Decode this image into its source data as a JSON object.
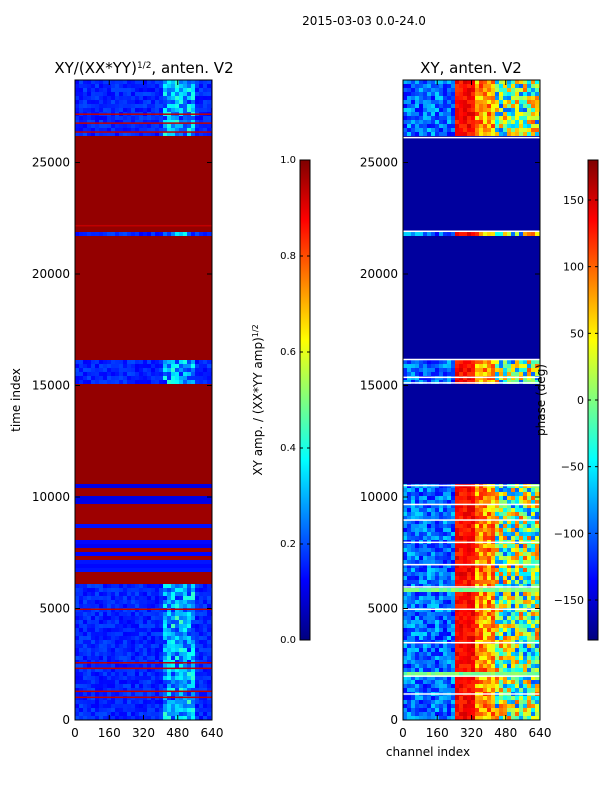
{
  "figure_title": "2015-03-03 0.0-24.0",
  "chart_data": [
    {
      "type": "heatmap",
      "title": "XY/(XX*YY)^1/2, anten. V2",
      "title_main": "XY/(XX*YY)",
      "title_sup": "1/2",
      "title_tail": ", anten. V2",
      "xlabel": "",
      "ylabel": "time index",
      "xlim": [
        0,
        640
      ],
      "ylim": [
        0,
        28700
      ],
      "xticks": [
        0,
        160,
        320,
        480,
        640
      ],
      "yticks": [
        0,
        5000,
        10000,
        15000,
        20000,
        25000
      ],
      "colorbar": {
        "label": "XY amp. / (XX*YY amp)^1/2",
        "label_main": "XY amp. / (XX*YY amp)",
        "label_sup": "1/2",
        "range": [
          0.0,
          1.0
        ],
        "ticks": [
          "0.0",
          "0.2",
          "0.4",
          "0.6",
          "0.8",
          "1.0"
        ],
        "colormap": "jet"
      },
      "saturated_bands": [
        {
          "from": 10550,
          "to": 15150,
          "value": 1.0
        },
        {
          "from": 16200,
          "to": 21750,
          "value": 1.0
        },
        {
          "from": 21950,
          "to": 26150,
          "value": 1.0
        },
        {
          "from": 6100,
          "to": 10550,
          "value": 0.95
        }
      ],
      "background_value": 0.12
    },
    {
      "type": "heatmap",
      "title": "XY, anten. V2",
      "xlabel": "channel index",
      "ylabel": "",
      "xlim": [
        0,
        640
      ],
      "ylim": [
        0,
        28700
      ],
      "xticks": [
        0,
        160,
        320,
        480,
        640
      ],
      "yticks": [
        0,
        5000,
        10000,
        15000,
        20000,
        25000
      ],
      "colorbar": {
        "label": "phase (deg)",
        "range": [
          -180,
          180
        ],
        "ticks": [
          "−150",
          "−100",
          "−50",
          "0",
          "50",
          "100",
          "150"
        ],
        "colormap": "jet"
      },
      "flat_bands": [
        {
          "from": 10550,
          "to": 15150,
          "value": -180
        },
        {
          "from": 16200,
          "to": 21750,
          "value": -180
        },
        {
          "from": 21950,
          "to": 26150,
          "value": -180
        }
      ],
      "phase_structure_channels": [
        240,
        420
      ]
    }
  ]
}
